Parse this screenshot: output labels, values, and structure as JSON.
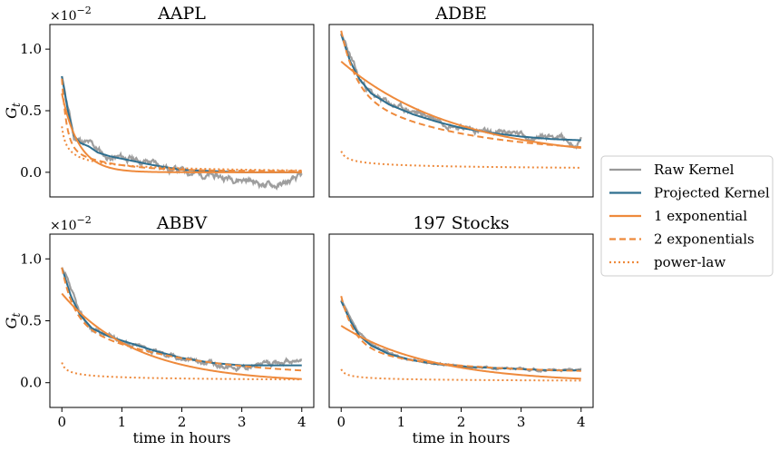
{
  "chart_data": {
    "type": "line",
    "legend": {
      "placement": "right",
      "entries": [
        {
          "label": "Raw Kernel",
          "color": "#999999",
          "style": "solid"
        },
        {
          "label": "Projected Kernel",
          "color": "#2f6f8f",
          "style": "solid"
        },
        {
          "label": "1 exponential",
          "color": "#ee8a3c",
          "style": "solid"
        },
        {
          "label": "2 exponentials",
          "color": "#ee8a3c",
          "style": "dashed"
        },
        {
          "label": "power-law",
          "color": "#ee8a3c",
          "style": "dotted"
        }
      ]
    },
    "panels": [
      {
        "title": "AAPL",
        "ylabel": "G",
        "ylabel_sub": "t",
        "y_offset_text": "×10",
        "y_offset_exp": "−2",
        "xlim": [
          -0.2,
          4.2
        ],
        "ylim": [
          -0.2,
          1.2
        ],
        "xticks": [],
        "yticks": [
          0,
          0.5,
          1.0
        ],
        "ytick_labels": [
          "0.0",
          "0.5",
          "1.0"
        ],
        "raw": {
          "x0": 0.0,
          "x1": 4.0,
          "start": 0.78,
          "tail": [
            [
              0.2,
              0.28
            ],
            [
              0.5,
              0.22
            ],
            [
              0.8,
              0.11
            ],
            [
              1.0,
              0.12
            ],
            [
              1.5,
              0.08
            ],
            [
              1.8,
              0.03
            ],
            [
              2.2,
              0.0
            ],
            [
              2.6,
              -0.04
            ],
            [
              3.0,
              -0.05
            ],
            [
              3.3,
              -0.09
            ],
            [
              3.6,
              -0.11
            ],
            [
              3.8,
              -0.08
            ],
            [
              4.0,
              -0.04
            ]
          ],
          "noise": 0.02,
          "seed": 11
        },
        "projected": {
          "points": [
            [
              0.0,
              0.78
            ],
            [
              0.1,
              0.5
            ],
            [
              0.2,
              0.3
            ],
            [
              0.3,
              0.24
            ],
            [
              0.45,
              0.21
            ],
            [
              0.6,
              0.16
            ],
            [
              0.8,
              0.13
            ],
            [
              1.0,
              0.11
            ],
            [
              1.5,
              0.06
            ],
            [
              2.0,
              0.02
            ],
            [
              2.5,
              0.01
            ],
            [
              3.0,
              0.0
            ],
            [
              4.0,
              0.0
            ]
          ]
        },
        "one_exp": {
          "a": 0.64,
          "tau": 0.28,
          "c": 0.0
        },
        "two_exp": {
          "a1": 0.55,
          "t1": 0.08,
          "a2": 0.2,
          "t2": 0.7,
          "c": 0.01
        },
        "power": {
          "a": 0.9,
          "x0": 0.05,
          "p": 0.5,
          "c": -0.03
        }
      },
      {
        "title": "ADBE",
        "ylabel": "",
        "ylabel_sub": "",
        "y_offset_text": "",
        "y_offset_exp": "",
        "xlim": [
          -0.2,
          4.2
        ],
        "ylim": [
          -0.2,
          1.2
        ],
        "xticks": [],
        "yticks": [],
        "ytick_labels": [],
        "raw": {
          "x0": 0.0,
          "x1": 4.0,
          "start": 1.13,
          "tail": [
            [
              0.3,
              0.75
            ],
            [
              0.6,
              0.6
            ],
            [
              1.0,
              0.52
            ],
            [
              1.5,
              0.45
            ],
            [
              2.0,
              0.37
            ],
            [
              2.5,
              0.31
            ],
            [
              2.8,
              0.33
            ],
            [
              3.2,
              0.28
            ],
            [
              3.6,
              0.3
            ],
            [
              3.9,
              0.22
            ],
            [
              4.0,
              0.26
            ]
          ],
          "noise": 0.018,
          "seed": 23
        },
        "projected": {
          "points": [
            [
              0.0,
              1.12
            ],
            [
              0.15,
              0.9
            ],
            [
              0.3,
              0.76
            ],
            [
              0.5,
              0.64
            ],
            [
              0.8,
              0.55
            ],
            [
              1.2,
              0.47
            ],
            [
              1.6,
              0.41
            ],
            [
              2.0,
              0.36
            ],
            [
              2.5,
              0.32
            ],
            [
              3.0,
              0.29
            ],
            [
              3.5,
              0.27
            ],
            [
              4.0,
              0.26
            ]
          ]
        },
        "one_exp": {
          "a": 0.8,
          "tau": 1.9,
          "c": 0.1
        },
        "two_exp": {
          "a1": 0.5,
          "t1": 0.25,
          "a2": 0.5,
          "t2": 1.8,
          "c": 0.15
        },
        "power": {
          "a": 0.6,
          "x0": 0.05,
          "p": 0.35,
          "c": 0.0
        }
      },
      {
        "title": "ABBV",
        "ylabel": "G",
        "ylabel_sub": "t",
        "y_offset_text": "×10",
        "y_offset_exp": "−2",
        "xlim": [
          -0.2,
          4.2
        ],
        "ylim": [
          -0.2,
          1.2
        ],
        "xticks": [
          0,
          1,
          2,
          3,
          4
        ],
        "xtick_labels": [
          "0",
          "1",
          "2",
          "3",
          "4"
        ],
        "xlabel": "time in hours",
        "yticks": [
          0,
          0.5,
          1.0
        ],
        "ytick_labels": [
          "0.0",
          "0.5",
          "1.0"
        ],
        "raw": {
          "x0": 0.0,
          "x1": 4.0,
          "start": 0.93,
          "tail": [
            [
              0.3,
              0.55
            ],
            [
              0.5,
              0.43
            ],
            [
              1.0,
              0.34
            ],
            [
              1.5,
              0.26
            ],
            [
              2.0,
              0.2
            ],
            [
              2.3,
              0.17
            ],
            [
              2.6,
              0.14
            ],
            [
              3.0,
              0.13
            ],
            [
              3.5,
              0.15
            ],
            [
              4.0,
              0.18
            ]
          ],
          "noise": 0.015,
          "seed": 37
        },
        "projected": {
          "points": [
            [
              0.0,
              0.93
            ],
            [
              0.15,
              0.7
            ],
            [
              0.3,
              0.55
            ],
            [
              0.5,
              0.44
            ],
            [
              0.8,
              0.37
            ],
            [
              1.2,
              0.31
            ],
            [
              1.6,
              0.25
            ],
            [
              2.0,
              0.2
            ],
            [
              2.5,
              0.16
            ],
            [
              3.0,
              0.14
            ],
            [
              3.5,
              0.14
            ],
            [
              4.0,
              0.14
            ]
          ]
        },
        "one_exp": {
          "a": 0.72,
          "tau": 1.25,
          "c": 0.0
        },
        "two_exp": {
          "a1": 0.43,
          "t1": 0.2,
          "a2": 0.45,
          "t2": 1.8,
          "c": 0.05
        },
        "power": {
          "a": 0.45,
          "x0": 0.04,
          "p": 0.4,
          "c": 0.0
        }
      },
      {
        "title": "197 Stocks",
        "ylabel": "",
        "ylabel_sub": "",
        "y_offset_text": "",
        "y_offset_exp": "",
        "xlim": [
          -0.2,
          4.2
        ],
        "ylim": [
          -0.2,
          1.2
        ],
        "xticks": [
          0,
          1,
          2,
          3,
          4
        ],
        "xtick_labels": [
          "0",
          "1",
          "2",
          "3",
          "4"
        ],
        "xlabel": "time in hours",
        "yticks": [],
        "ytick_labels": [],
        "raw": {
          "x0": 0.0,
          "x1": 4.0,
          "start": 0.67,
          "tail": [
            [
              0.3,
              0.4
            ],
            [
              0.6,
              0.28
            ],
            [
              1.0,
              0.2
            ],
            [
              1.5,
              0.16
            ],
            [
              2.0,
              0.13
            ],
            [
              2.5,
              0.12
            ],
            [
              3.0,
              0.11
            ],
            [
              3.5,
              0.1
            ],
            [
              4.0,
              0.1
            ]
          ],
          "noise": 0.006,
          "seed": 53
        },
        "projected": {
          "points": [
            [
              0.0,
              0.66
            ],
            [
              0.15,
              0.5
            ],
            [
              0.3,
              0.38
            ],
            [
              0.5,
              0.3
            ],
            [
              0.8,
              0.23
            ],
            [
              1.2,
              0.18
            ],
            [
              1.6,
              0.15
            ],
            [
              2.0,
              0.13
            ],
            [
              2.5,
              0.12
            ],
            [
              3.0,
              0.11
            ],
            [
              3.5,
              0.1
            ],
            [
              4.0,
              0.1
            ]
          ]
        },
        "one_exp": {
          "a": 0.46,
          "tau": 1.5,
          "c": 0.0
        },
        "two_exp": {
          "a1": 0.4,
          "t1": 0.22,
          "a2": 0.22,
          "t2": 1.5,
          "c": 0.08
        },
        "power": {
          "a": 0.3,
          "x0": 0.04,
          "p": 0.4,
          "c": 0.0
        }
      }
    ]
  }
}
